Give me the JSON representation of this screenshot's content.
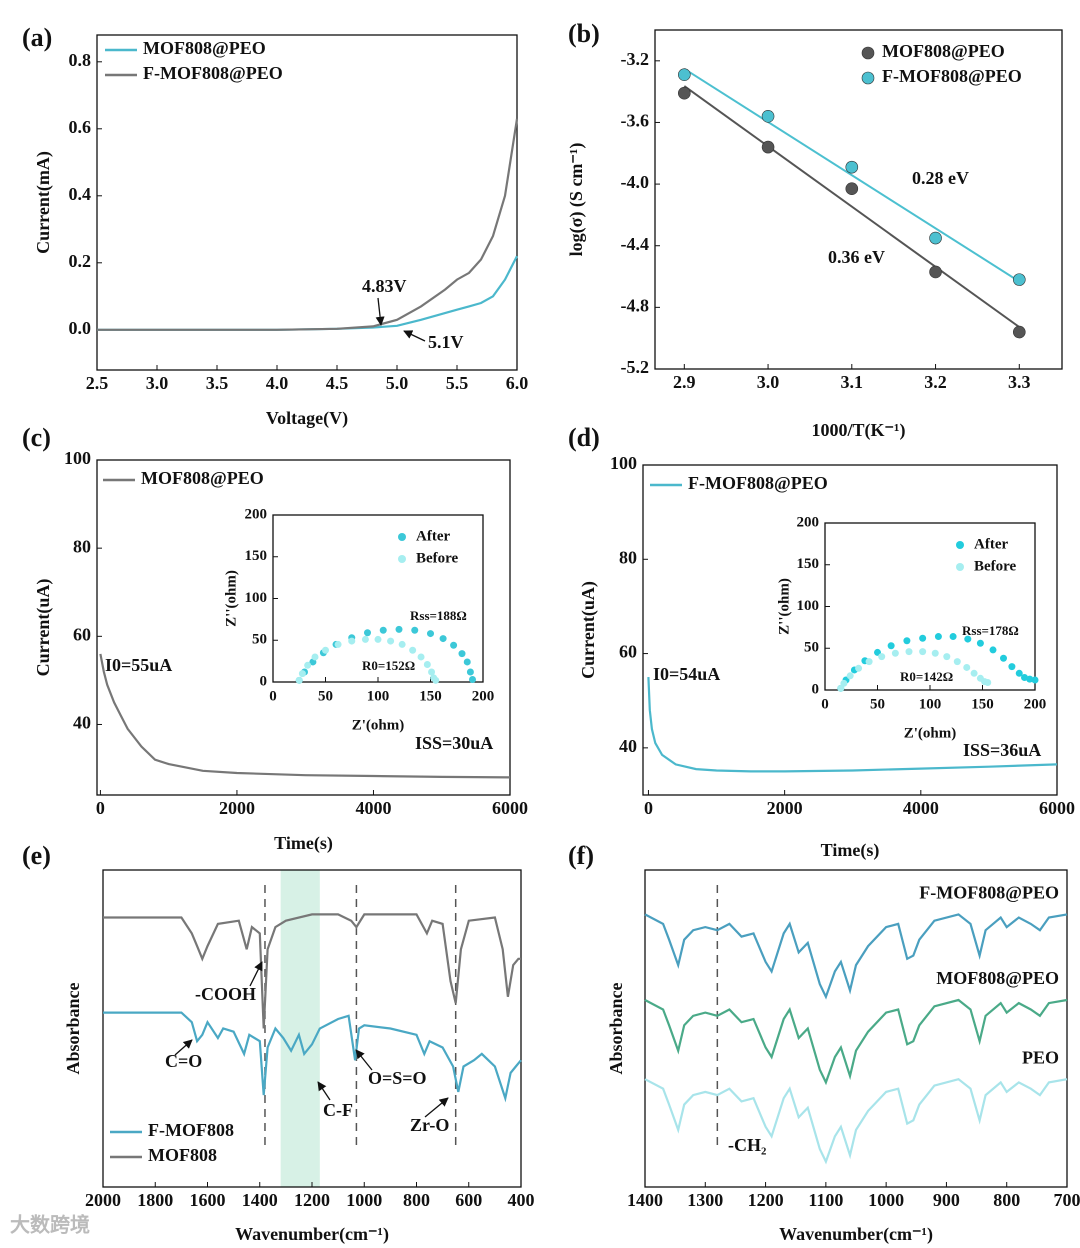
{
  "watermark": "大数跨境",
  "chart_data": [
    {
      "type": "line",
      "panel": "(a)",
      "xlabel": "Voltage(V)",
      "ylabel": "Current(mA)",
      "x": [
        2.5,
        3.0,
        3.5,
        4.0,
        4.5,
        4.8,
        5.0,
        5.2,
        5.4,
        5.5,
        5.6,
        5.7,
        5.8,
        5.9,
        6.0
      ],
      "series": [
        {
          "name": "MOF808@PEO",
          "color": "#4bb8cc",
          "values": [
            0,
            0,
            0,
            0,
            0.003,
            0.007,
            0.012,
            0.03,
            0.05,
            0.06,
            0.07,
            0.08,
            0.1,
            0.15,
            0.22
          ]
        },
        {
          "name": "F-MOF808@PEO",
          "color": "#777777",
          "values": [
            0,
            0,
            0,
            0,
            0.003,
            0.01,
            0.03,
            0.07,
            0.12,
            0.15,
            0.17,
            0.21,
            0.28,
            0.4,
            0.63
          ]
        }
      ],
      "xlim": [
        2.5,
        6.0
      ],
      "ylim": [
        -0.12,
        0.88
      ],
      "xticks": [
        2.5,
        {
          "value": 3,
          "label": "3.0"
        },
        3.5,
        {
          "value": 4,
          "label": "4.0"
        },
        4.5,
        {
          "value": 5,
          "label": "5.0"
        },
        5.5,
        {
          "value": 6,
          "label": "6.0"
        }
      ],
      "yticks": [
        {
          "value": 0,
          "label": "0.0"
        },
        0.2,
        0.4,
        0.6,
        0.8
      ],
      "annotations": [
        "4.83V",
        "5.1V"
      ],
      "legend": "upper left",
      "grid": false
    },
    {
      "type": "scatter",
      "panel": "(b)",
      "xlabel": "1000/T(K⁻¹)",
      "ylabel": "log(σ) (S cm⁻¹)",
      "x": [
        2.9,
        3.0,
        3.1,
        3.2,
        3.3
      ],
      "series": [
        {
          "name": "MOF808@PEO",
          "color": "#555555",
          "values": [
            -3.41,
            -3.76,
            -4.03,
            -4.57,
            -4.96
          ]
        },
        {
          "name": "F-MOF808@PEO",
          "color": "#4cc0d0",
          "values": [
            -3.29,
            -3.56,
            -3.89,
            -4.35,
            -4.62
          ]
        }
      ],
      "fit": true,
      "xlim": [
        2.865,
        3.351
      ],
      "ylim": [
        -5.2,
        -3.0
      ],
      "xticks": [
        2.9,
        {
          "value": 3,
          "label": "3.0"
        },
        3.1,
        3.2,
        3.3
      ],
      "yticks": [
        -3.2,
        -3.6,
        {
          "value": -4,
          "label": "-4.0"
        },
        -4.4,
        -4.8,
        -5.2
      ],
      "annotations": [
        "0.28 eV",
        "0.36 eV"
      ],
      "legend": "upper right",
      "grid": false
    },
    {
      "type": "line",
      "panel": "(c)",
      "xlabel": "Time(s)",
      "ylabel": "Current(uA)",
      "x": [
        0,
        50,
        100,
        200,
        300,
        400,
        600,
        800,
        1000,
        1500,
        2000,
        3000,
        4000,
        5000,
        6000
      ],
      "series": [
        {
          "name": "MOF808@PEO",
          "color": "#777777",
          "values": [
            56,
            52,
            49,
            45,
            42,
            39,
            35,
            32,
            31,
            29.5,
            29,
            28.5,
            28.3,
            28.1,
            28
          ]
        }
      ],
      "xlim": [
        -50,
        6000
      ],
      "ylim": [
        24,
        100
      ],
      "xticks": [
        0,
        2000,
        4000,
        6000
      ],
      "yticks": [
        40,
        60,
        80,
        100
      ],
      "annotations": [
        "I0=55uA",
        "ISS=30uA"
      ],
      "legend": "upper left",
      "grid": false
    },
    {
      "type": "scatter",
      "xlabel": "Z'(ohm)",
      "ylabel": "Z''(ohm)",
      "series": [
        {
          "name": "After",
          "color": "#3cc8d8",
          "x": [
            25,
            30,
            38,
            48,
            60,
            75,
            90,
            105,
            120,
            135,
            150,
            162,
            172,
            180,
            185,
            188,
            190
          ],
          "values": [
            2,
            12,
            24,
            35,
            45,
            53,
            59,
            62,
            63,
            62,
            58,
            52,
            44,
            34,
            24,
            12,
            3
          ]
        },
        {
          "name": "Before",
          "color": "#a6eef0",
          "x": [
            25,
            28,
            33,
            40,
            50,
            62,
            75,
            88,
            100,
            112,
            123,
            133,
            141,
            147,
            151,
            153,
            155
          ],
          "values": [
            2,
            10,
            20,
            30,
            38,
            45,
            49,
            51,
            51,
            49,
            45,
            38,
            30,
            21,
            12,
            5,
            2
          ]
        }
      ],
      "xlim": [
        0,
        200
      ],
      "ylim": [
        0,
        200
      ],
      "xticks": [
        0,
        50,
        100,
        150,
        200
      ],
      "yticks": [
        0,
        50,
        100,
        150,
        200
      ],
      "annotations": [
        "Rss=188Ω",
        "R0=152Ω"
      ],
      "legend": "upper right",
      "grid": false
    },
    {
      "type": "line",
      "panel": "(d)",
      "xlabel": "Time(s)",
      "ylabel": "Current(uA)",
      "x": [
        0,
        20,
        50,
        100,
        200,
        400,
        700,
        1000,
        1500,
        2000,
        3000,
        4000,
        5000,
        6000
      ],
      "series": [
        {
          "name": "F-MOF808@PEO",
          "color": "#4bb8cc",
          "values": [
            55,
            48,
            44,
            41,
            38.5,
            36.5,
            35.5,
            35.2,
            35,
            35,
            35.2,
            35.6,
            36,
            36.5
          ]
        }
      ],
      "xlim": [
        -80,
        6000
      ],
      "ylim": [
        30,
        100
      ],
      "xticks": [
        0,
        2000,
        4000,
        6000
      ],
      "yticks": [
        40,
        60,
        80,
        100
      ],
      "annotations": [
        "I0=54uA",
        "ISS=36uA"
      ],
      "legend": "upper left",
      "grid": false
    },
    {
      "type": "scatter",
      "xlabel": "Z'(ohm)",
      "ylabel": "Z''(ohm)",
      "series": [
        {
          "name": "After",
          "color": "#22ccdd",
          "x": [
            15,
            20,
            28,
            38,
            50,
            63,
            78,
            93,
            108,
            122,
            136,
            148,
            160,
            170,
            178,
            185,
            190,
            195,
            200
          ],
          "values": [
            2,
            12,
            24,
            35,
            45,
            53,
            59,
            62,
            64,
            64,
            61,
            56,
            48,
            38,
            28,
            20,
            15,
            13,
            12
          ]
        },
        {
          "name": "Before",
          "color": "#a6eef0",
          "x": [
            15,
            18,
            24,
            32,
            42,
            54,
            67,
            80,
            93,
            105,
            116,
            126,
            135,
            142,
            148,
            152,
            155
          ],
          "values": [
            2,
            8,
            17,
            26,
            34,
            40,
            44,
            46,
            46,
            44,
            40,
            34,
            27,
            20,
            14,
            10,
            9
          ]
        }
      ],
      "xlim": [
        0,
        200
      ],
      "ylim": [
        0,
        200
      ],
      "xticks": [
        0,
        50,
        100,
        150,
        200
      ],
      "yticks": [
        0,
        50,
        100,
        150,
        200
      ],
      "annotations": [
        "Rss=178Ω",
        "R0=142Ω"
      ],
      "legend": "upper right",
      "grid": false
    },
    {
      "type": "line",
      "panel": "(e)",
      "xlabel": "Wavenumber(cm⁻¹)",
      "ylabel": "Absorbance",
      "series": [
        {
          "name": "F-MOF808",
          "color": "#4aa8c4",
          "x": [
            2000,
            1700,
            1660,
            1640,
            1620,
            1600,
            1560,
            1540,
            1500,
            1460,
            1440,
            1400,
            1385,
            1370,
            1340,
            1310,
            1280,
            1250,
            1230,
            1200,
            1170,
            1100,
            1060,
            1035,
            1020,
            1000,
            900,
            800,
            770,
            750,
            700,
            660,
            640,
            620,
            580,
            550,
            500,
            460,
            440,
            420,
            400
          ],
          "values": [
            5.5,
            5.5,
            5.2,
            4.6,
            4.8,
            5.2,
            4.7,
            5.0,
            4.9,
            4.2,
            4.8,
            4.6,
            2.9,
            4.4,
            5.0,
            4.7,
            4.3,
            4.8,
            4.2,
            4.5,
            5.0,
            5.3,
            5.4,
            4.0,
            5.0,
            5.1,
            5.0,
            4.8,
            4.2,
            4.6,
            4.4,
            3.8,
            3.0,
            3.8,
            4.0,
            4.2,
            3.8,
            2.8,
            3.6,
            3.8,
            4.0
          ]
        },
        {
          "name": "MOF808",
          "color": "#777777",
          "x": [
            2000,
            1700,
            1660,
            1640,
            1620,
            1600,
            1560,
            1480,
            1450,
            1430,
            1400,
            1385,
            1370,
            1340,
            1300,
            1200,
            1100,
            1050,
            1030,
            1000,
            800,
            760,
            740,
            700,
            670,
            650,
            630,
            600,
            500,
            470,
            450,
            430,
            410,
            400
          ],
          "values": [
            8.5,
            8.5,
            8.0,
            7.6,
            7.2,
            7.6,
            8.3,
            8.4,
            7.5,
            8.2,
            8.0,
            5.0,
            7.5,
            8.2,
            8.4,
            8.6,
            8.6,
            8.4,
            8.2,
            8.6,
            8.6,
            8.0,
            8.4,
            8.3,
            6.5,
            5.8,
            7.5,
            8.4,
            8.5,
            7.5,
            6.0,
            7.0,
            7.2,
            7.2
          ]
        }
      ],
      "xlim": [
        2000,
        400
      ],
      "ylim": [
        0,
        10
      ],
      "xticks": [
        2000,
        1800,
        1600,
        1400,
        1200,
        1000,
        800,
        600,
        400
      ],
      "vlines": [
        1380,
        1030,
        650
      ],
      "band": [
        1170,
        1320
      ],
      "annotations": [
        "-COOH",
        "C=O",
        "O=S=O",
        "C-F",
        "Zr-O"
      ],
      "legend": "lower left",
      "grid": false
    },
    {
      "type": "line",
      "panel": "(f)",
      "xlabel": "Wavenumber(cm⁻¹)",
      "ylabel": "Absorbance",
      "x": [
        1400,
        1370,
        1360,
        1345,
        1335,
        1320,
        1300,
        1280,
        1260,
        1240,
        1220,
        1200,
        1190,
        1170,
        1160,
        1145,
        1130,
        1110,
        1100,
        1085,
        1075,
        1060,
        1050,
        1030,
        1000,
        980,
        965,
        955,
        945,
        920,
        880,
        860,
        845,
        835,
        810,
        800,
        780,
        760,
        745,
        730,
        700
      ],
      "series": [
        {
          "name": "F-MOF808@PEO",
          "color": "#4a9fbf",
          "values": [
            8.6,
            8.3,
            7.8,
            7.0,
            7.8,
            8.1,
            8.2,
            8.1,
            8.3,
            7.9,
            8.0,
            7.1,
            6.8,
            8.0,
            8.3,
            7.4,
            7.7,
            6.4,
            6.0,
            6.8,
            7.1,
            6.2,
            7.0,
            7.6,
            8.2,
            8.3,
            7.2,
            7.3,
            7.8,
            8.4,
            8.6,
            8.3,
            7.3,
            8.1,
            8.5,
            8.2,
            8.5,
            8.3,
            8.1,
            8.5,
            8.6
          ]
        },
        {
          "name": "MOF808@PEO",
          "color": "#4aaa88",
          "values": [
            5.9,
            5.6,
            5.1,
            4.3,
            5.1,
            5.4,
            5.5,
            5.4,
            5.6,
            5.2,
            5.3,
            4.4,
            4.1,
            5.3,
            5.6,
            4.7,
            5.0,
            3.7,
            3.3,
            4.1,
            4.4,
            3.5,
            4.3,
            4.9,
            5.5,
            5.6,
            4.5,
            4.6,
            5.1,
            5.7,
            5.9,
            5.6,
            4.6,
            5.4,
            5.8,
            5.5,
            5.8,
            5.6,
            5.4,
            5.8,
            5.9
          ]
        },
        {
          "name": "PEO",
          "color": "#a8e4ea",
          "values": [
            3.4,
            3.1,
            2.6,
            1.8,
            2.6,
            2.9,
            3.0,
            2.9,
            3.1,
            2.7,
            2.8,
            1.9,
            1.6,
            2.8,
            3.1,
            2.2,
            2.5,
            1.2,
            0.8,
            1.6,
            1.9,
            1.0,
            1.8,
            2.4,
            3.0,
            3.1,
            2.0,
            2.1,
            2.6,
            3.2,
            3.4,
            3.1,
            2.1,
            2.9,
            3.3,
            3.0,
            3.3,
            3.1,
            2.9,
            3.3,
            3.4
          ]
        }
      ],
      "xlim": [
        1400,
        700
      ],
      "ylim": [
        0,
        10
      ],
      "xticks": [
        1400,
        1300,
        1200,
        1100,
        1000,
        900,
        800,
        700
      ],
      "vlines": [
        1280
      ],
      "annotations": [
        "-CH₂"
      ],
      "legend": "inline",
      "grid": false
    }
  ]
}
